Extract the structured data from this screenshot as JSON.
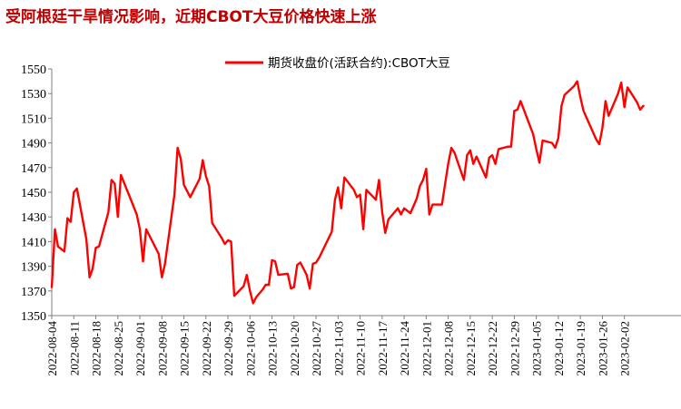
{
  "title": "受阿根廷干旱情况影响，近期CBOT大豆价格快速上涨",
  "colors": {
    "title": "#c00000",
    "series": "#ff0000",
    "axis": "#7f7f7f"
  },
  "chart_data": {
    "type": "line",
    "title": "受阿根廷干旱情况影响，近期CBOT大豆价格快速上涨",
    "xlabel": "",
    "ylabel": "",
    "ylim": [
      1350,
      1550
    ],
    "yticks": [
      1350,
      1370,
      1390,
      1410,
      1430,
      1450,
      1470,
      1490,
      1510,
      1530,
      1550
    ],
    "xlim": [
      "2022-08-04",
      "2023-02-07"
    ],
    "x_tick_labels": [
      "2022-08-04",
      "2022-08-11",
      "2022-08-18",
      "2022-08-25",
      "2022-09-01",
      "2022-09-08",
      "2022-09-15",
      "2022-09-22",
      "2022-09-29",
      "2022-10-06",
      "2022-10-13",
      "2022-10-20",
      "2022-10-27",
      "2022-11-03",
      "2022-11-10",
      "2022-11-17",
      "2022-11-24",
      "2022-12-01",
      "2022-12-08",
      "2022-12-15",
      "2022-12-22",
      "2022-12-29",
      "2023-01-05",
      "2023-01-12",
      "2023-01-19",
      "2023-01-26",
      "2023-02-02"
    ],
    "grid": false,
    "legend_position": "top-right",
    "series": [
      {
        "name": "期货收盘价(活跃合约):CBOT大豆",
        "color": "#ff0000",
        "points": [
          [
            "2022-08-04",
            1373
          ],
          [
            "2022-08-05",
            1420
          ],
          [
            "2022-08-06",
            1406
          ],
          [
            "2022-08-08",
            1402
          ],
          [
            "2022-08-09",
            1429
          ],
          [
            "2022-08-10",
            1426
          ],
          [
            "2022-08-11",
            1450
          ],
          [
            "2022-08-12",
            1453
          ],
          [
            "2022-08-15",
            1412
          ],
          [
            "2022-08-16",
            1381
          ],
          [
            "2022-08-17",
            1388
          ],
          [
            "2022-08-18",
            1405
          ],
          [
            "2022-08-19",
            1406
          ],
          [
            "2022-08-22",
            1434
          ],
          [
            "2022-08-23",
            1460
          ],
          [
            "2022-08-24",
            1457
          ],
          [
            "2022-08-25",
            1430
          ],
          [
            "2022-08-26",
            1464
          ],
          [
            "2022-08-29",
            1445
          ],
          [
            "2022-08-31",
            1432
          ],
          [
            "2022-09-01",
            1420
          ],
          [
            "2022-09-02",
            1394
          ],
          [
            "2022-09-03",
            1420
          ],
          [
            "2022-09-07",
            1400
          ],
          [
            "2022-09-08",
            1381
          ],
          [
            "2022-09-09",
            1392
          ],
          [
            "2022-09-12",
            1448
          ],
          [
            "2022-09-13",
            1486
          ],
          [
            "2022-09-14",
            1477
          ],
          [
            "2022-09-15",
            1456
          ],
          [
            "2022-09-16",
            1451
          ],
          [
            "2022-09-17",
            1446
          ],
          [
            "2022-09-20",
            1461
          ],
          [
            "2022-09-21",
            1476
          ],
          [
            "2022-09-22",
            1463
          ],
          [
            "2022-09-23",
            1455
          ],
          [
            "2022-09-24",
            1425
          ],
          [
            "2022-09-27",
            1413
          ],
          [
            "2022-09-28",
            1408
          ],
          [
            "2022-09-29",
            1411
          ],
          [
            "2022-09-30",
            1410
          ],
          [
            "2022-10-01",
            1366
          ],
          [
            "2022-10-04",
            1374
          ],
          [
            "2022-10-05",
            1383
          ],
          [
            "2022-10-06",
            1370
          ],
          [
            "2022-10-07",
            1360
          ],
          [
            "2022-10-08",
            1365
          ],
          [
            "2022-10-10",
            1371
          ],
          [
            "2022-10-11",
            1375
          ],
          [
            "2022-10-12",
            1375
          ],
          [
            "2022-10-13",
            1395
          ],
          [
            "2022-10-14",
            1394
          ],
          [
            "2022-10-15",
            1383
          ],
          [
            "2022-10-18",
            1384
          ],
          [
            "2022-10-19",
            1372
          ],
          [
            "2022-10-20",
            1373
          ],
          [
            "2022-10-21",
            1391
          ],
          [
            "2022-10-22",
            1393
          ],
          [
            "2022-10-24",
            1383
          ],
          [
            "2022-10-25",
            1372
          ],
          [
            "2022-10-26",
            1392
          ],
          [
            "2022-10-27",
            1393
          ],
          [
            "2022-10-28",
            1397
          ],
          [
            "2022-11-01",
            1418
          ],
          [
            "2022-11-02",
            1444
          ],
          [
            "2022-11-03",
            1454
          ],
          [
            "2022-11-04",
            1437
          ],
          [
            "2022-11-05",
            1462
          ],
          [
            "2022-11-08",
            1452
          ],
          [
            "2022-11-09",
            1446
          ],
          [
            "2022-11-10",
            1448
          ],
          [
            "2022-11-11",
            1420
          ],
          [
            "2022-11-12",
            1452
          ],
          [
            "2022-11-15",
            1444
          ],
          [
            "2022-11-16",
            1460
          ],
          [
            "2022-11-17",
            1434
          ],
          [
            "2022-11-18",
            1417
          ],
          [
            "2022-11-19",
            1428
          ],
          [
            "2022-11-22",
            1437
          ],
          [
            "2022-11-23",
            1432
          ],
          [
            "2022-11-24",
            1437
          ],
          [
            "2022-11-26",
            1433
          ],
          [
            "2022-11-28",
            1445
          ],
          [
            "2022-11-29",
            1455
          ],
          [
            "2022-11-30",
            1460
          ],
          [
            "2022-12-01",
            1469
          ],
          [
            "2022-12-02",
            1432
          ],
          [
            "2022-12-03",
            1440
          ],
          [
            "2022-12-06",
            1440
          ],
          [
            "2022-12-08",
            1473
          ],
          [
            "2022-12-09",
            1486
          ],
          [
            "2022-12-10",
            1482
          ],
          [
            "2022-12-13",
            1460
          ],
          [
            "2022-12-14",
            1480
          ],
          [
            "2022-12-15",
            1484
          ],
          [
            "2022-12-16",
            1473
          ],
          [
            "2022-12-17",
            1479
          ],
          [
            "2022-12-20",
            1462
          ],
          [
            "2022-12-21",
            1478
          ],
          [
            "2022-12-22",
            1480
          ],
          [
            "2022-12-23",
            1473
          ],
          [
            "2022-12-24",
            1485
          ],
          [
            "2022-12-27",
            1487
          ],
          [
            "2022-12-28",
            1487
          ],
          [
            "2022-12-29",
            1516
          ],
          [
            "2022-12-30",
            1517
          ],
          [
            "2022-12-31",
            1524
          ],
          [
            "2023-01-04",
            1497
          ],
          [
            "2023-01-05",
            1485
          ],
          [
            "2023-01-06",
            1474
          ],
          [
            "2023-01-07",
            1492
          ],
          [
            "2023-01-10",
            1490
          ],
          [
            "2023-01-11",
            1486
          ],
          [
            "2023-01-12",
            1494
          ],
          [
            "2023-01-13",
            1520
          ],
          [
            "2023-01-14",
            1529
          ],
          [
            "2023-01-17",
            1536
          ],
          [
            "2023-01-18",
            1540
          ],
          [
            "2023-01-19",
            1527
          ],
          [
            "2023-01-20",
            1516
          ],
          [
            "2023-01-24",
            1493
          ],
          [
            "2023-01-25",
            1489
          ],
          [
            "2023-01-26",
            1502
          ],
          [
            "2023-01-27",
            1524
          ],
          [
            "2023-01-28",
            1512
          ],
          [
            "2023-01-31",
            1530
          ],
          [
            "2023-02-01",
            1539
          ],
          [
            "2023-02-02",
            1519
          ],
          [
            "2023-02-03",
            1535
          ],
          [
            "2023-02-06",
            1523
          ],
          [
            "2023-02-07",
            1517
          ],
          [
            "2023-02-08",
            1520
          ]
        ]
      }
    ]
  }
}
